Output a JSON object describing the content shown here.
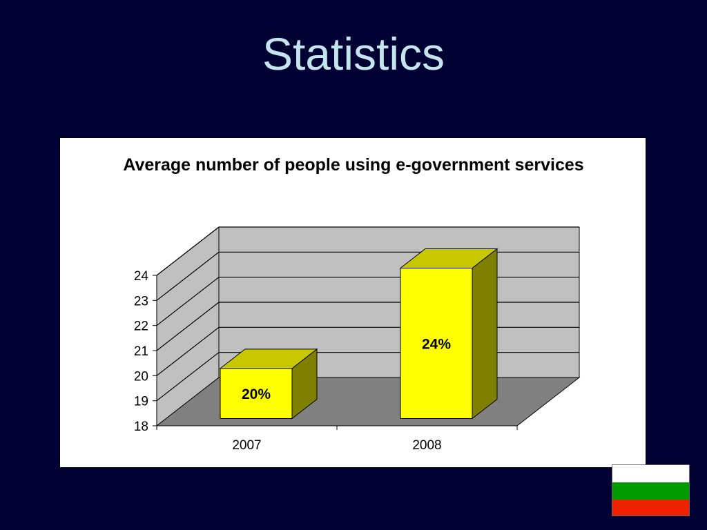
{
  "slide": {
    "title": "Statistics"
  },
  "colors": {
    "background": "#000033",
    "title_text": "#c4e4ee",
    "bar_front": "#ffff00",
    "bar_top": "#c8c800",
    "bar_side": "#808000",
    "back_wall": "#c0c0c0",
    "side_wall": "#c0c0c0",
    "floor": "#808080"
  },
  "flag": {
    "stripes": [
      "#ffffff",
      "#009900",
      "#ee2200"
    ]
  },
  "chart_data": {
    "type": "bar",
    "title": "Average number of people using e-government services",
    "categories": [
      "2007",
      "2008"
    ],
    "values": [
      20,
      24
    ],
    "data_labels": [
      "20%",
      "24%"
    ],
    "ylim": [
      18,
      24
    ],
    "yticks": [
      18,
      19,
      20,
      21,
      22,
      23,
      24
    ],
    "xlabel": "",
    "ylabel": "",
    "grid": true,
    "legend": "none",
    "style": "3d"
  }
}
